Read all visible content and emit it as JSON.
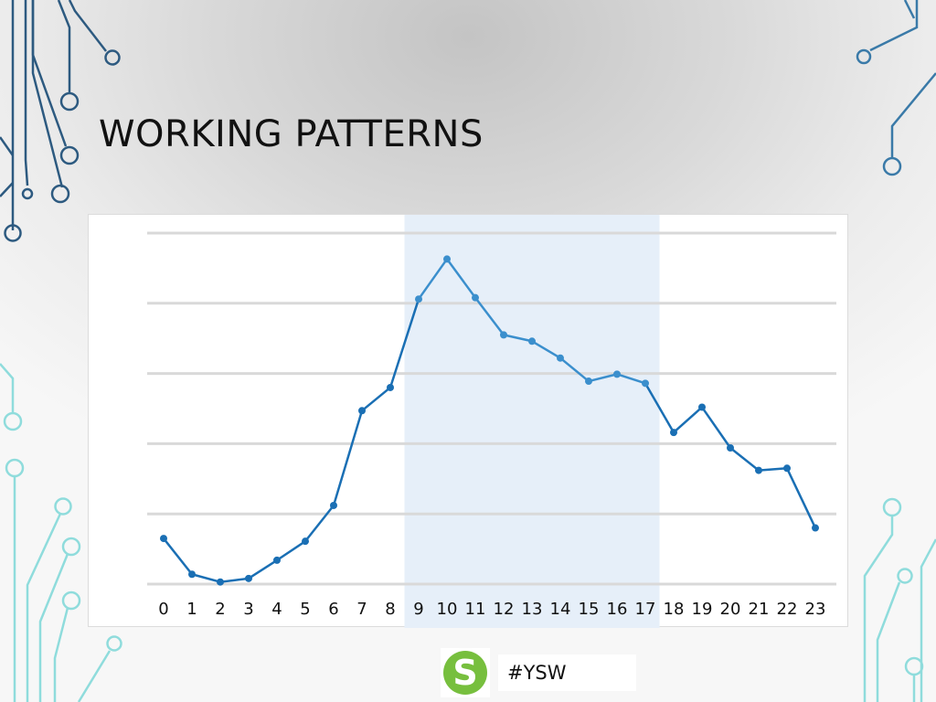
{
  "slide": {
    "title": "WORKING PATTERNS",
    "hashtag": "#YSW",
    "logo_letter": "S"
  },
  "colors": {
    "line": "#1a6fb4",
    "line_highlight": "#3b8fcd",
    "highlight_band": "#e6eff9",
    "gridline": "#d9d9d9",
    "logo_green": "#77bf3e",
    "circuit_dark": "#2d5a80",
    "circuit_light": "#8fdcdc"
  },
  "chart_data": {
    "type": "line",
    "categories": [
      "0",
      "1",
      "2",
      "3",
      "4",
      "5",
      "6",
      "7",
      "8",
      "9",
      "10",
      "11",
      "12",
      "13",
      "14",
      "15",
      "16",
      "17",
      "18",
      "19",
      "20",
      "21",
      "22",
      "23"
    ],
    "values": [
      6.5,
      1.4,
      0.3,
      0.8,
      3.4,
      6.1,
      11.2,
      24.7,
      28.0,
      40.6,
      46.3,
      40.8,
      35.5,
      34.6,
      32.2,
      28.9,
      29.9,
      28.6,
      21.6,
      25.2,
      19.4,
      16.2,
      16.5,
      8.0
    ],
    "highlight_range": [
      "9",
      "17"
    ],
    "ylim": [
      0,
      50
    ],
    "gridline_count": 6,
    "grid": true,
    "xlabel": "",
    "ylabel": "",
    "title": ""
  }
}
